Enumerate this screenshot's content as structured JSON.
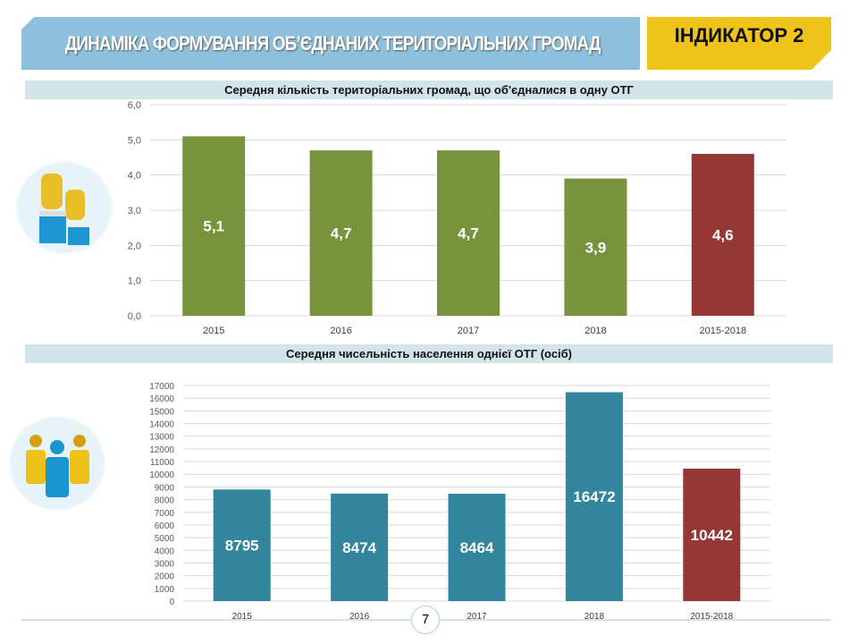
{
  "header": {
    "title": "ДИНАМІКА ФОРМУВАННЯ ОБ’ЄДНАНИХ ТЕРИТОРІАЛЬНИХ ГРОМАД",
    "indicator": "ІНДИКАТОР 2"
  },
  "page_number": "7",
  "colors": {
    "green": "#77933c",
    "red": "#953735",
    "teal": "#31859c"
  },
  "chart_data": [
    {
      "type": "bar",
      "title": "Середня кількість територіальних громад, що об'єдналися в одну ОТГ",
      "categories": [
        "2015",
        "2016",
        "2017",
        "2018",
        "2015-2018"
      ],
      "values": [
        5.1,
        4.7,
        4.7,
        3.9,
        4.6
      ],
      "labels": [
        "5,1",
        "4,7",
        "4,7",
        "3,9",
        "4,6"
      ],
      "ylim": [
        0,
        6
      ],
      "yticks": [
        "0,0",
        "1,0",
        "2,0",
        "3,0",
        "4,0",
        "5,0",
        "6,0"
      ],
      "grid": true
    },
    {
      "type": "bar",
      "title": "Середня чисельність населення однієї ОТГ (осіб)",
      "categories": [
        "2015",
        "2016",
        "2017",
        "2018",
        "2015-2018"
      ],
      "values": [
        8795,
        8474,
        8464,
        16472,
        10442
      ],
      "labels": [
        "8795",
        "8474",
        "8464",
        "16472",
        "10442"
      ],
      "ylim": [
        0,
        17000
      ],
      "yticks": [
        "0",
        "1000",
        "2000",
        "3000",
        "4000",
        "5000",
        "6000",
        "7000",
        "8000",
        "9000",
        "10000",
        "11000",
        "12000",
        "13000",
        "14000",
        "15000",
        "16000",
        "17000"
      ],
      "grid": true
    }
  ]
}
